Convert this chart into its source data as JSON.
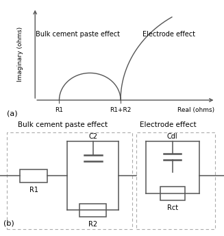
{
  "fig_width": 3.27,
  "fig_height": 3.44,
  "dpi": 100,
  "background_color": "#ffffff",
  "panel_a": {
    "label": "(a)",
    "ylabel": "Imaginary (ohms)",
    "xlabel": "Real (ohms)",
    "label_bulk": "Bulk cement paste effect",
    "label_electrode": "Electrode effect",
    "tick_r1": "R1",
    "tick_r1r2": "R1+R2",
    "line_color": "#555555"
  },
  "panel_b": {
    "label": "(b)",
    "label_bulk": "Bulk cement paste effect",
    "label_electrode": "Electrode effect",
    "line_color": "#555555",
    "dash_color": "#aaaaaa"
  }
}
